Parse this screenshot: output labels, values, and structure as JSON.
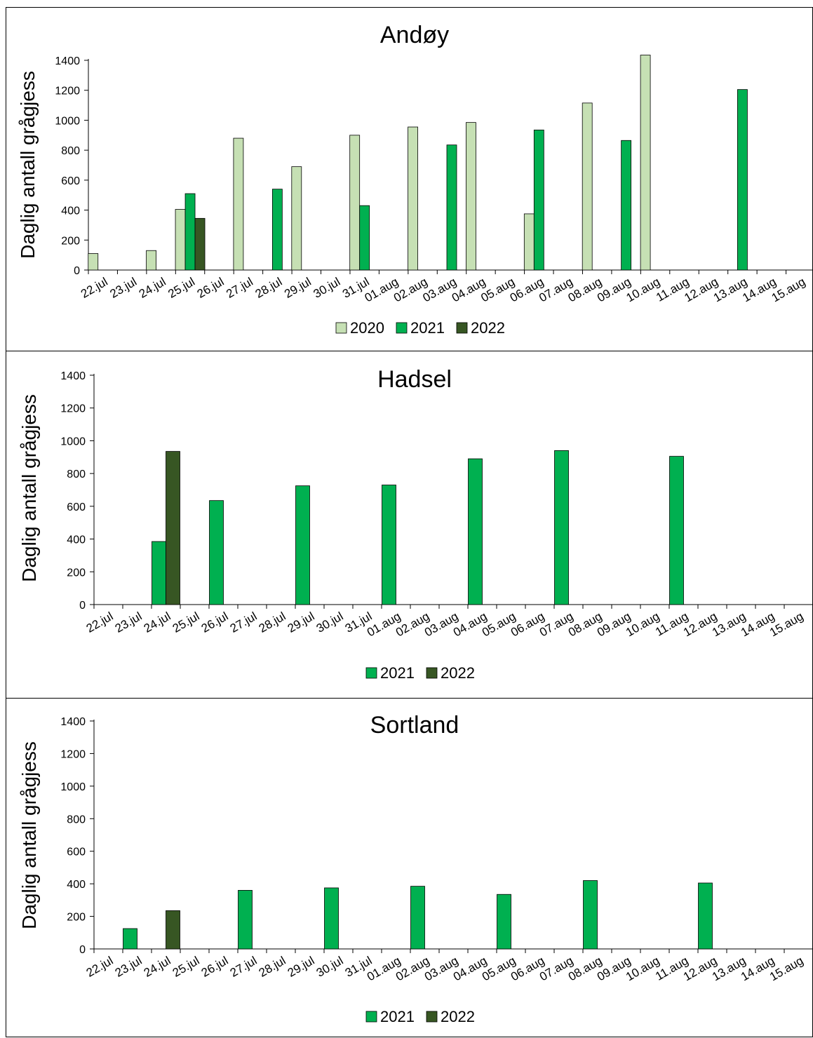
{
  "chart_data": [
    {
      "type": "bar",
      "title": "Andøy",
      "ylabel": "Daglig antall grågjess",
      "xlabel": "",
      "ylim": [
        0,
        1400
      ],
      "yticks": [
        0,
        200,
        400,
        600,
        800,
        1000,
        1200,
        1400
      ],
      "categories": [
        "22.jul",
        "23.jul",
        "24.jul",
        "25.jul",
        "26.jul",
        "27.jul",
        "28.jul",
        "29.jul",
        "30.jul",
        "31.jul",
        "01.aug",
        "02.aug",
        "03.aug",
        "04.aug",
        "05.aug",
        "06.aug",
        "07.aug",
        "08.aug",
        "09.aug",
        "10.aug",
        "11.aug",
        "12.aug",
        "13.aug",
        "14.aug",
        "15.aug"
      ],
      "legend_position": "bottom",
      "series": [
        {
          "name": "2020",
          "color": "#c6e0b4",
          "values": [
            110,
            null,
            130,
            405,
            null,
            880,
            null,
            690,
            null,
            900,
            null,
            955,
            null,
            985,
            null,
            375,
            null,
            1115,
            null,
            1435,
            null,
            null,
            null,
            null,
            null
          ]
        },
        {
          "name": "2021",
          "color": "#00b050",
          "values": [
            null,
            null,
            null,
            510,
            null,
            null,
            540,
            null,
            null,
            430,
            null,
            null,
            835,
            null,
            null,
            935,
            null,
            null,
            865,
            null,
            null,
            null,
            1205,
            null,
            null
          ]
        },
        {
          "name": "2022",
          "color": "#375623",
          "values": [
            null,
            null,
            null,
            345,
            null,
            null,
            null,
            null,
            null,
            null,
            null,
            null,
            null,
            null,
            null,
            null,
            null,
            null,
            null,
            null,
            null,
            null,
            null,
            null,
            null
          ]
        }
      ]
    },
    {
      "type": "bar",
      "title": "Hadsel",
      "ylabel": "Daglig antall grågjess",
      "xlabel": "",
      "ylim": [
        0,
        1400
      ],
      "yticks": [
        0,
        200,
        400,
        600,
        800,
        1000,
        1200,
        1400
      ],
      "categories": [
        "22.jul",
        "23.jul",
        "24.jul",
        "25.jul",
        "26.jul",
        "27.jul",
        "28.jul",
        "29.jul",
        "30.jul",
        "31.jul",
        "01.aug",
        "02.aug",
        "03.aug",
        "04.aug",
        "05.aug",
        "06.aug",
        "07.aug",
        "08.aug",
        "09.aug",
        "10.aug",
        "11.aug",
        "12.aug",
        "13.aug",
        "14.aug",
        "15.aug"
      ],
      "legend_position": "bottom",
      "series": [
        {
          "name": "2021",
          "color": "#00b050",
          "values": [
            null,
            null,
            385,
            null,
            635,
            null,
            null,
            725,
            null,
            null,
            730,
            null,
            null,
            890,
            null,
            null,
            940,
            null,
            null,
            null,
            905,
            null,
            null,
            null,
            null
          ]
        },
        {
          "name": "2022",
          "color": "#375623",
          "values": [
            null,
            null,
            935,
            null,
            null,
            null,
            null,
            null,
            null,
            null,
            null,
            null,
            null,
            null,
            null,
            null,
            null,
            null,
            null,
            null,
            null,
            null,
            null,
            null,
            null
          ]
        }
      ]
    },
    {
      "type": "bar",
      "title": "Sortland",
      "ylabel": "Daglig antall grågjess",
      "xlabel": "",
      "ylim": [
        0,
        1400
      ],
      "yticks": [
        0,
        200,
        400,
        600,
        800,
        1000,
        1200,
        1400
      ],
      "categories": [
        "22.jul",
        "23.jul",
        "24.jul",
        "25.jul",
        "26.jul",
        "27.jul",
        "28.jul",
        "29.jul",
        "30.jul",
        "31.jul",
        "01.aug",
        "02.aug",
        "03.aug",
        "04.aug",
        "05.aug",
        "06.aug",
        "07.aug",
        "08.aug",
        "09.aug",
        "10.aug",
        "11.aug",
        "12.aug",
        "13.aug",
        "14.aug",
        "15.aug"
      ],
      "legend_position": "bottom",
      "series": [
        {
          "name": "2021",
          "color": "#00b050",
          "values": [
            null,
            125,
            null,
            null,
            null,
            360,
            null,
            null,
            375,
            null,
            null,
            385,
            null,
            null,
            335,
            null,
            null,
            420,
            null,
            null,
            null,
            405,
            null,
            null,
            null
          ]
        },
        {
          "name": "2022",
          "color": "#375623",
          "values": [
            null,
            null,
            235,
            null,
            null,
            null,
            null,
            null,
            null,
            null,
            null,
            null,
            null,
            null,
            null,
            null,
            null,
            null,
            null,
            null,
            null,
            null,
            null,
            null,
            null
          ]
        }
      ]
    }
  ]
}
